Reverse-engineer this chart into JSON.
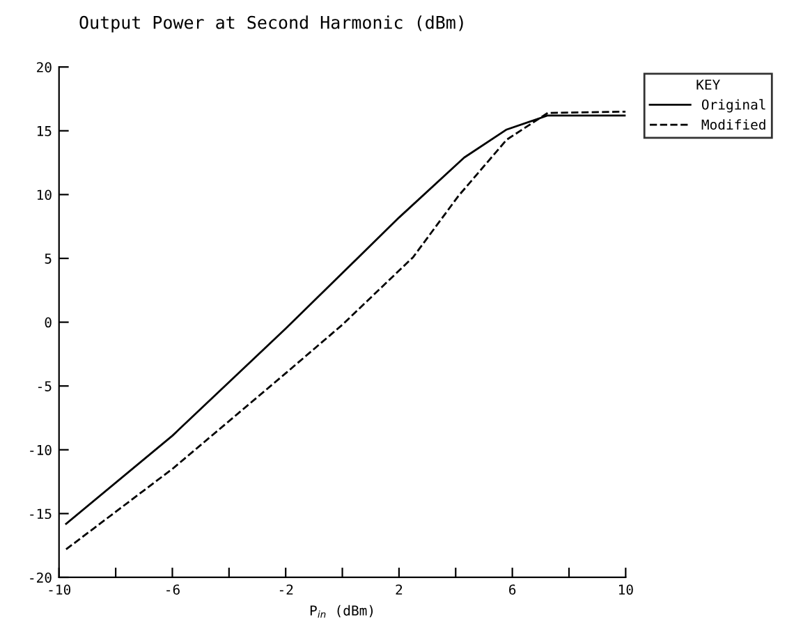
{
  "chart_data": {
    "type": "line",
    "title": "Output Power at Second Harmonic (dBm)",
    "xlabel": "P$_{in}$ (dBm)",
    "legend_title": "KEY",
    "legend": "top right",
    "grid": false,
    "xlim": [
      -10,
      10
    ],
    "ylim": [
      -20,
      20
    ],
    "xticks": [
      -10,
      {
        "value": -8,
        "label": null
      },
      -6,
      {
        "value": -4,
        "label": null
      },
      -2,
      {
        "value": 0,
        "label": null
      },
      2,
      {
        "value": 4,
        "label": null
      },
      6,
      {
        "value": 8,
        "label": null
      },
      10
    ],
    "yticks": [
      -20,
      -15,
      -10,
      -5,
      0,
      5,
      10,
      15,
      20
    ],
    "series": [
      {
        "name": "Original",
        "color": "#000000",
        "line_style": "solid",
        "x": [
          -9.75,
          -6,
          -2,
          2,
          4.3,
          5.8,
          7.25,
          10
        ],
        "values": [
          -15.8,
          -8.9,
          -0.5,
          8.2,
          12.9,
          15.1,
          16.2,
          16.2
        ]
      },
      {
        "name": "Modified",
        "color": "#000000",
        "line_style": "dashed",
        "x": [
          -9.75,
          -6,
          -2,
          0,
          2.5,
          4.1,
          5.8,
          7.25,
          10
        ],
        "values": [
          -17.8,
          -11.5,
          -4,
          -0.2,
          5.1,
          9.9,
          14.3,
          16.4,
          16.5
        ]
      }
    ]
  }
}
